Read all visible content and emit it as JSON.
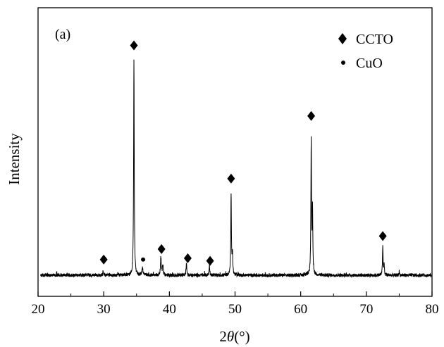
{
  "chart_data": {
    "type": "line",
    "panel_label": "(a)",
    "xlabel_prefix": "2",
    "xlabel_theta": "θ",
    "xlabel_unit": "(°)",
    "ylabel": "Intensity",
    "xlim": [
      20,
      80
    ],
    "ylim": [
      0,
      100
    ],
    "x_ticks": [
      20,
      30,
      40,
      50,
      60,
      70,
      80
    ],
    "y_ticks_shown": false,
    "grid": false,
    "legend": {
      "position": "top-right",
      "entries": [
        {
          "marker": "diamond",
          "label": "CCTO"
        },
        {
          "marker": "dot",
          "label": "CuO"
        }
      ]
    },
    "baseline": 3.5,
    "peaks": [
      {
        "x": 29.9,
        "height": 1.5,
        "width": 0.12
      },
      {
        "x": 34.6,
        "height": 83,
        "width": 0.11
      },
      {
        "x": 35.9,
        "height": 3,
        "width": 0.18
      },
      {
        "x": 38.7,
        "height": 7,
        "width": 0.14
      },
      {
        "x": 39.0,
        "height": 4,
        "width": 0.14
      },
      {
        "x": 42.6,
        "height": 5,
        "width": 0.12
      },
      {
        "x": 46.1,
        "height": 4,
        "width": 0.12
      },
      {
        "x": 49.4,
        "height": 31,
        "width": 0.11
      },
      {
        "x": 49.6,
        "height": 8,
        "width": 0.12
      },
      {
        "x": 61.6,
        "height": 52,
        "width": 0.11
      },
      {
        "x": 61.8,
        "height": 24,
        "width": 0.11
      },
      {
        "x": 72.5,
        "height": 11,
        "width": 0.11
      },
      {
        "x": 72.7,
        "height": 4,
        "width": 0.11
      },
      {
        "x": 75.0,
        "height": 1.5,
        "width": 0.1
      }
    ],
    "markers": [
      {
        "type": "diamond",
        "phase": "CCTO",
        "x": 30.0,
        "y": 9.5
      },
      {
        "type": "diamond",
        "phase": "CCTO",
        "x": 34.6,
        "y": 91.5
      },
      {
        "type": "dot",
        "phase": "CuO",
        "x": 36.0,
        "y": 9.5
      },
      {
        "type": "diamond",
        "phase": "CCTO",
        "x": 38.8,
        "y": 13.5
      },
      {
        "type": "diamond",
        "phase": "CCTO",
        "x": 42.8,
        "y": 10.0
      },
      {
        "type": "diamond",
        "phase": "CCTO",
        "x": 46.2,
        "y": 9.0
      },
      {
        "type": "diamond",
        "phase": "CCTO",
        "x": 49.4,
        "y": 40.5
      },
      {
        "type": "diamond",
        "phase": "CCTO",
        "x": 61.6,
        "y": 64.5
      },
      {
        "type": "diamond",
        "phase": "CCTO",
        "x": 72.5,
        "y": 18.5
      }
    ]
  }
}
